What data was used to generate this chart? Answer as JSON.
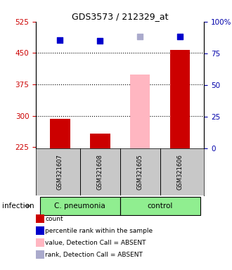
{
  "title": "GDS3573 / 212329_at",
  "samples": [
    "GSM321607",
    "GSM321608",
    "GSM321605",
    "GSM321606"
  ],
  "bar_colors": [
    "#CC0000",
    "#CC0000",
    "#FFB6C1",
    "#CC0000"
  ],
  "bar_values": [
    293,
    258,
    398,
    458
  ],
  "bar_base": 222,
  "dot_colors": [
    "#0000CC",
    "#0000CC",
    "#AAAACC",
    "#0000CC"
  ],
  "dot_values": [
    481,
    479,
    489,
    489
  ],
  "ylim_left": [
    222,
    525
  ],
  "ylim_right": [
    0,
    100
  ],
  "yticks_left": [
    225,
    300,
    375,
    450,
    525
  ],
  "yticks_right": [
    0,
    25,
    50,
    75,
    100
  ],
  "ytick_labels_left": [
    "225",
    "300",
    "375",
    "450",
    "525"
  ],
  "ytick_labels_right": [
    "0",
    "25",
    "50",
    "75",
    "100%"
  ],
  "hlines": [
    450,
    375,
    300
  ],
  "group_defs": [
    {
      "label": "C. pneumonia",
      "xmin": -0.5,
      "xmax": 1.5,
      "color": "#90EE90"
    },
    {
      "label": "control",
      "xmin": 1.5,
      "xmax": 3.5,
      "color": "#90EE90"
    }
  ],
  "infection_label": "infection",
  "legend_items": [
    {
      "color": "#CC0000",
      "label": "count"
    },
    {
      "color": "#0000CC",
      "label": "percentile rank within the sample"
    },
    {
      "color": "#FFB6C1",
      "label": "value, Detection Call = ABSENT"
    },
    {
      "color": "#AAAACC",
      "label": "rank, Detection Call = ABSENT"
    }
  ],
  "left_axis_color": "#CC0000",
  "right_axis_color": "#0000AA",
  "bar_width": 0.5,
  "dot_size": 28,
  "title_fontsize": 9,
  "tick_fontsize": 7.5,
  "legend_fontsize": 6.5,
  "sample_fontsize": 6.0,
  "group_fontsize": 7.5
}
